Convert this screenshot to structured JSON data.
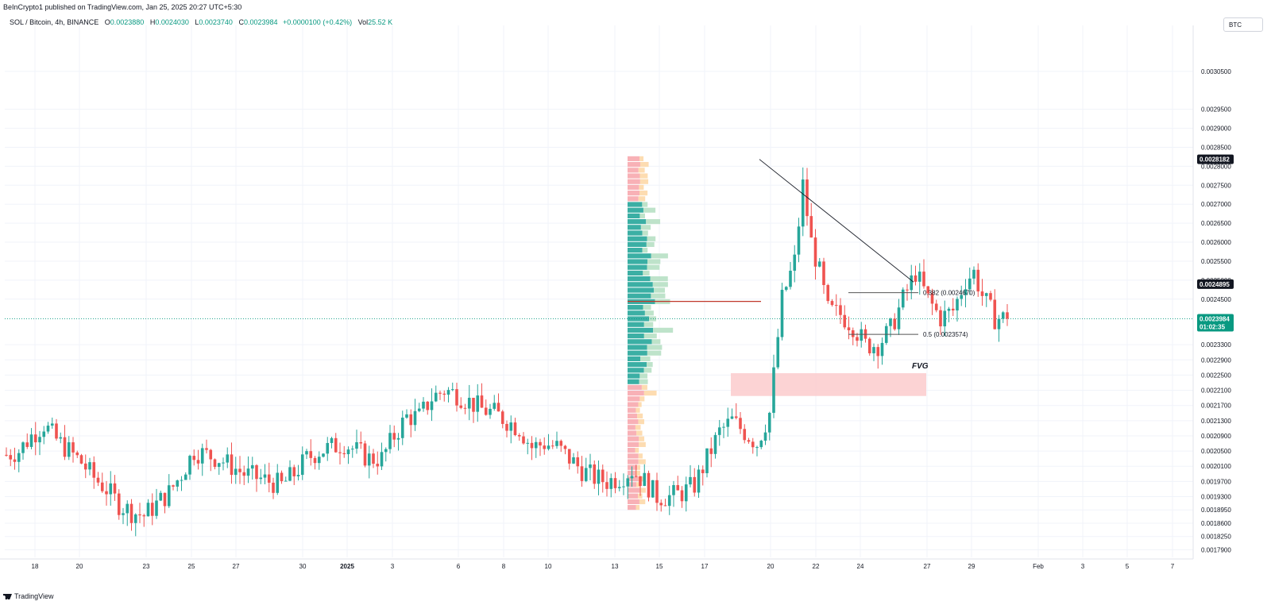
{
  "header": {
    "published_line": "BeInCrypto1 published on TradingView.com, Jan 25, 2025 20:27 UTC+5:30",
    "symbol": "SOL / Bitcoin, 4h, BINANCE",
    "open_label": "O",
    "open_value": "0.0023880",
    "high_label": "H",
    "high_value": "0.0024030",
    "low_label": "L",
    "low_value": "0.0023740",
    "close_label": "C",
    "close_value": "0.0023984",
    "change_value": "+0.0000100 (+0.42%)",
    "vol_label": "Vol",
    "vol_value": "25.52 K",
    "currency": "BTC"
  },
  "footer": {
    "brand": "TradingView"
  },
  "colors": {
    "up": "#26a69a",
    "down": "#ef5350",
    "tag_dark": "#131722",
    "tag_price": "#089981",
    "fvg_fill": "#fccbcd",
    "poc_line": "#c0392b",
    "vp_up": "#26a69a",
    "vp_down": "#f7a9ae",
    "vp_up_light": "#b7e0c4",
    "vp_orange": "#fdd8a8"
  },
  "chart_data": {
    "type": "candlestick",
    "y_scale": "linear",
    "ylim": [
      0.00177,
      0.00315
    ],
    "y_ticks": [
      "0.0030500",
      "0.0029500",
      "0.0029000",
      "0.0028500",
      "0.0028000",
      "0.0027500",
      "0.0027000",
      "0.0026500",
      "0.0026000",
      "0.0025500",
      "0.0025000",
      "0.0024500",
      "0.0023300",
      "0.0022900",
      "0.0022500",
      "0.0022100",
      "0.0021700",
      "0.0021300",
      "0.0020900",
      "0.0020500",
      "0.0020100",
      "0.0019700",
      "0.0019300",
      "0.0018950",
      "0.0018600",
      "0.0018250",
      "0.0017900"
    ],
    "x_labels": [
      "18",
      "20",
      "23",
      "25",
      "27",
      "30",
      "2025",
      "3",
      "6",
      "8",
      "10",
      "13",
      "15",
      "17",
      "20",
      "22",
      "24",
      "27",
      "29",
      "Feb",
      "3",
      "5",
      "7"
    ],
    "bold_x_label": "2025",
    "price_tags": {
      "high_tag": "0.0028182",
      "level_tag": "0.0024895",
      "current_price": "0.0023984",
      "countdown": "01:02:35"
    },
    "fib_levels": [
      {
        "label": "0.382 (0.0024670)",
        "value": 0.002467
      },
      {
        "label": "0.5 (0.0023574)",
        "value": 0.0023574
      }
    ],
    "fvg": {
      "label": "FVG",
      "top": 0.002255,
      "bottom": 0.002195
    },
    "trendline": {
      "from_value": 0.0028182,
      "to_value": 0.002495
    },
    "poc_value": 0.002444,
    "current_value": 0.0023984,
    "waypoints": [
      [
        0,
        0.00204
      ],
      [
        3,
        0.00205
      ],
      [
        6,
        0.00209
      ],
      [
        9,
        0.00212
      ],
      [
        12,
        0.00208
      ],
      [
        15,
        0.00205
      ],
      [
        18,
        0.00202
      ],
      [
        21,
        0.00198
      ],
      [
        24,
        0.00195
      ],
      [
        27,
        0.00191
      ],
      [
        30,
        0.00189
      ],
      [
        33,
        0.00188
      ],
      [
        36,
        0.00191
      ],
      [
        39,
        0.00194
      ],
      [
        42,
        0.00199
      ],
      [
        45,
        0.00205
      ],
      [
        48,
        0.00204
      ],
      [
        51,
        0.00203
      ],
      [
        54,
        0.00201
      ],
      [
        57,
        0.00199
      ],
      [
        60,
        0.00198
      ],
      [
        63,
        0.00197
      ],
      [
        66,
        0.00196
      ],
      [
        69,
        0.00199
      ],
      [
        72,
        0.00203
      ],
      [
        75,
        0.00205
      ],
      [
        78,
        0.00206
      ],
      [
        81,
        0.00207
      ],
      [
        84,
        0.00205
      ],
      [
        87,
        0.00203
      ],
      [
        90,
        0.00203
      ],
      [
        93,
        0.00209
      ],
      [
        96,
        0.00214
      ],
      [
        99,
        0.00214
      ],
      [
        102,
        0.00219
      ],
      [
        105,
        0.00221
      ],
      [
        108,
        0.0022
      ],
      [
        111,
        0.00218
      ],
      [
        114,
        0.00216
      ],
      [
        117,
        0.00215
      ],
      [
        120,
        0.00213
      ],
      [
        123,
        0.00211
      ],
      [
        126,
        0.00206
      ],
      [
        129,
        0.00207
      ],
      [
        132,
        0.00206
      ],
      [
        135,
        0.00203
      ],
      [
        138,
        0.002
      ],
      [
        141,
        0.00198
      ],
      [
        144,
        0.00197
      ],
      [
        147,
        0.00198
      ],
      [
        150,
        0.002
      ],
      [
        153,
        0.00197
      ],
      [
        156,
        0.00193
      ],
      [
        159,
        0.00193
      ],
      [
        162,
        0.00194
      ],
      [
        165,
        0.00196
      ],
      [
        168,
        0.00203
      ],
      [
        171,
        0.0021
      ],
      [
        174,
        0.00213
      ],
      [
        177,
        0.0021
      ],
      [
        180,
        0.00207
      ],
      [
        183,
        0.00215
      ],
      [
        186,
        0.00245
      ],
      [
        189,
        0.00255
      ],
      [
        191,
        0.00275
      ],
      [
        193,
        0.0026
      ],
      [
        195,
        0.00252
      ],
      [
        197,
        0.00242
      ],
      [
        200,
        0.00241
      ],
      [
        203,
        0.00238
      ],
      [
        206,
        0.00233
      ],
      [
        209,
        0.00233
      ],
      [
        212,
        0.00237
      ],
      [
        215,
        0.00245
      ],
      [
        218,
        0.00252
      ],
      [
        221,
        0.00245
      ],
      [
        224,
        0.0024
      ],
      [
        227,
        0.00242
      ],
      [
        230,
        0.0025
      ],
      [
        232,
        0.00252
      ],
      [
        234,
        0.00246
      ],
      [
        237,
        0.0024
      ],
      [
        240,
        0.0024
      ]
    ]
  }
}
